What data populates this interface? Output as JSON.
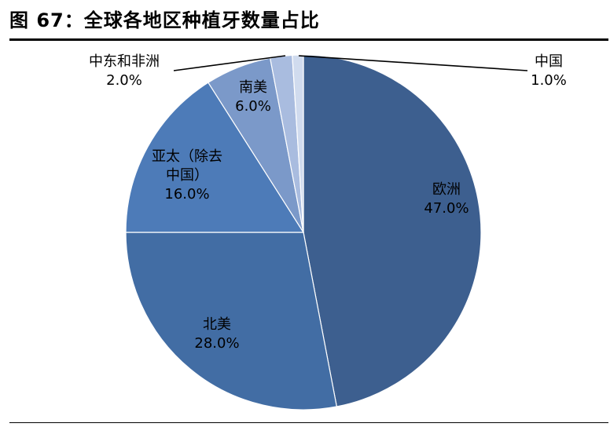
{
  "figure": {
    "title": "图 67：全球各地区种植牙数量占比"
  },
  "chart_data": {
    "type": "pie",
    "title": "图 67：全球各地区种植牙数量占比",
    "slices": [
      {
        "name": "欧洲",
        "label_lines": [
          "欧洲"
        ],
        "value": 47.0,
        "value_label": "47.0%",
        "color": "#3d5f8f"
      },
      {
        "name": "北美",
        "label_lines": [
          "北美"
        ],
        "value": 28.0,
        "value_label": "28.0%",
        "color": "#426da4"
      },
      {
        "name": "亚太（除去中国）",
        "label_lines": [
          "亚太（除去",
          "中国）"
        ],
        "value": 16.0,
        "value_label": "16.0%",
        "color": "#4d7bb8"
      },
      {
        "name": "南美",
        "label_lines": [
          "南美"
        ],
        "value": 6.0,
        "value_label": "6.0%",
        "color": "#7b99c9"
      },
      {
        "name": "中东和非洲",
        "label_lines": [
          "中东和非洲"
        ],
        "value": 2.0,
        "value_label": "2.0%",
        "color": "#a9bcdf"
      },
      {
        "name": "中国",
        "label_lines": [
          "中国"
        ],
        "value": 1.0,
        "value_label": "1.0%",
        "color": "#d0dbee"
      }
    ],
    "start_angle": "12 o'clock",
    "direction": "clockwise",
    "legend": "none"
  }
}
